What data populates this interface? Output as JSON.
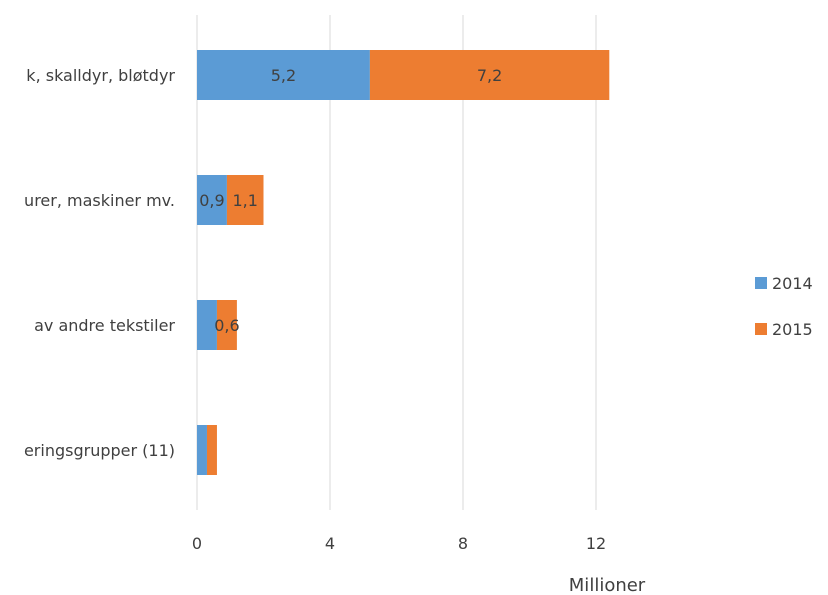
{
  "chart_data": {
    "type": "bar",
    "orientation": "horizontal",
    "stacked": true,
    "categories": [
      "k, skalldyr, bløtdyr",
      "urer, maskiner mv.",
      "av andre tekstiler",
      "eringsgrupper (11)"
    ],
    "series": [
      {
        "name": "2014",
        "values": [
          5.2,
          0.9,
          0.6,
          0.3
        ],
        "labels": [
          "5,2",
          "0,9",
          "",
          ""
        ]
      },
      {
        "name": "2015",
        "values": [
          7.2,
          1.1,
          0.6,
          0.3
        ],
        "labels": [
          "7,2",
          "1,1",
          "0,6",
          ""
        ]
      }
    ],
    "xlabel": "Millioner",
    "ylabel": "",
    "xlim": [
      0,
      12.5
    ],
    "xticks": [
      0,
      4,
      8,
      12
    ],
    "xtick_labels": [
      "0",
      "4",
      "8",
      "12"
    ],
    "grid": true,
    "legend_position": "right",
    "colors": {
      "2014": "#5b9bd5",
      "2015": "#ed7d31",
      "grid": "#d9d9d9",
      "text": "#404040"
    }
  }
}
